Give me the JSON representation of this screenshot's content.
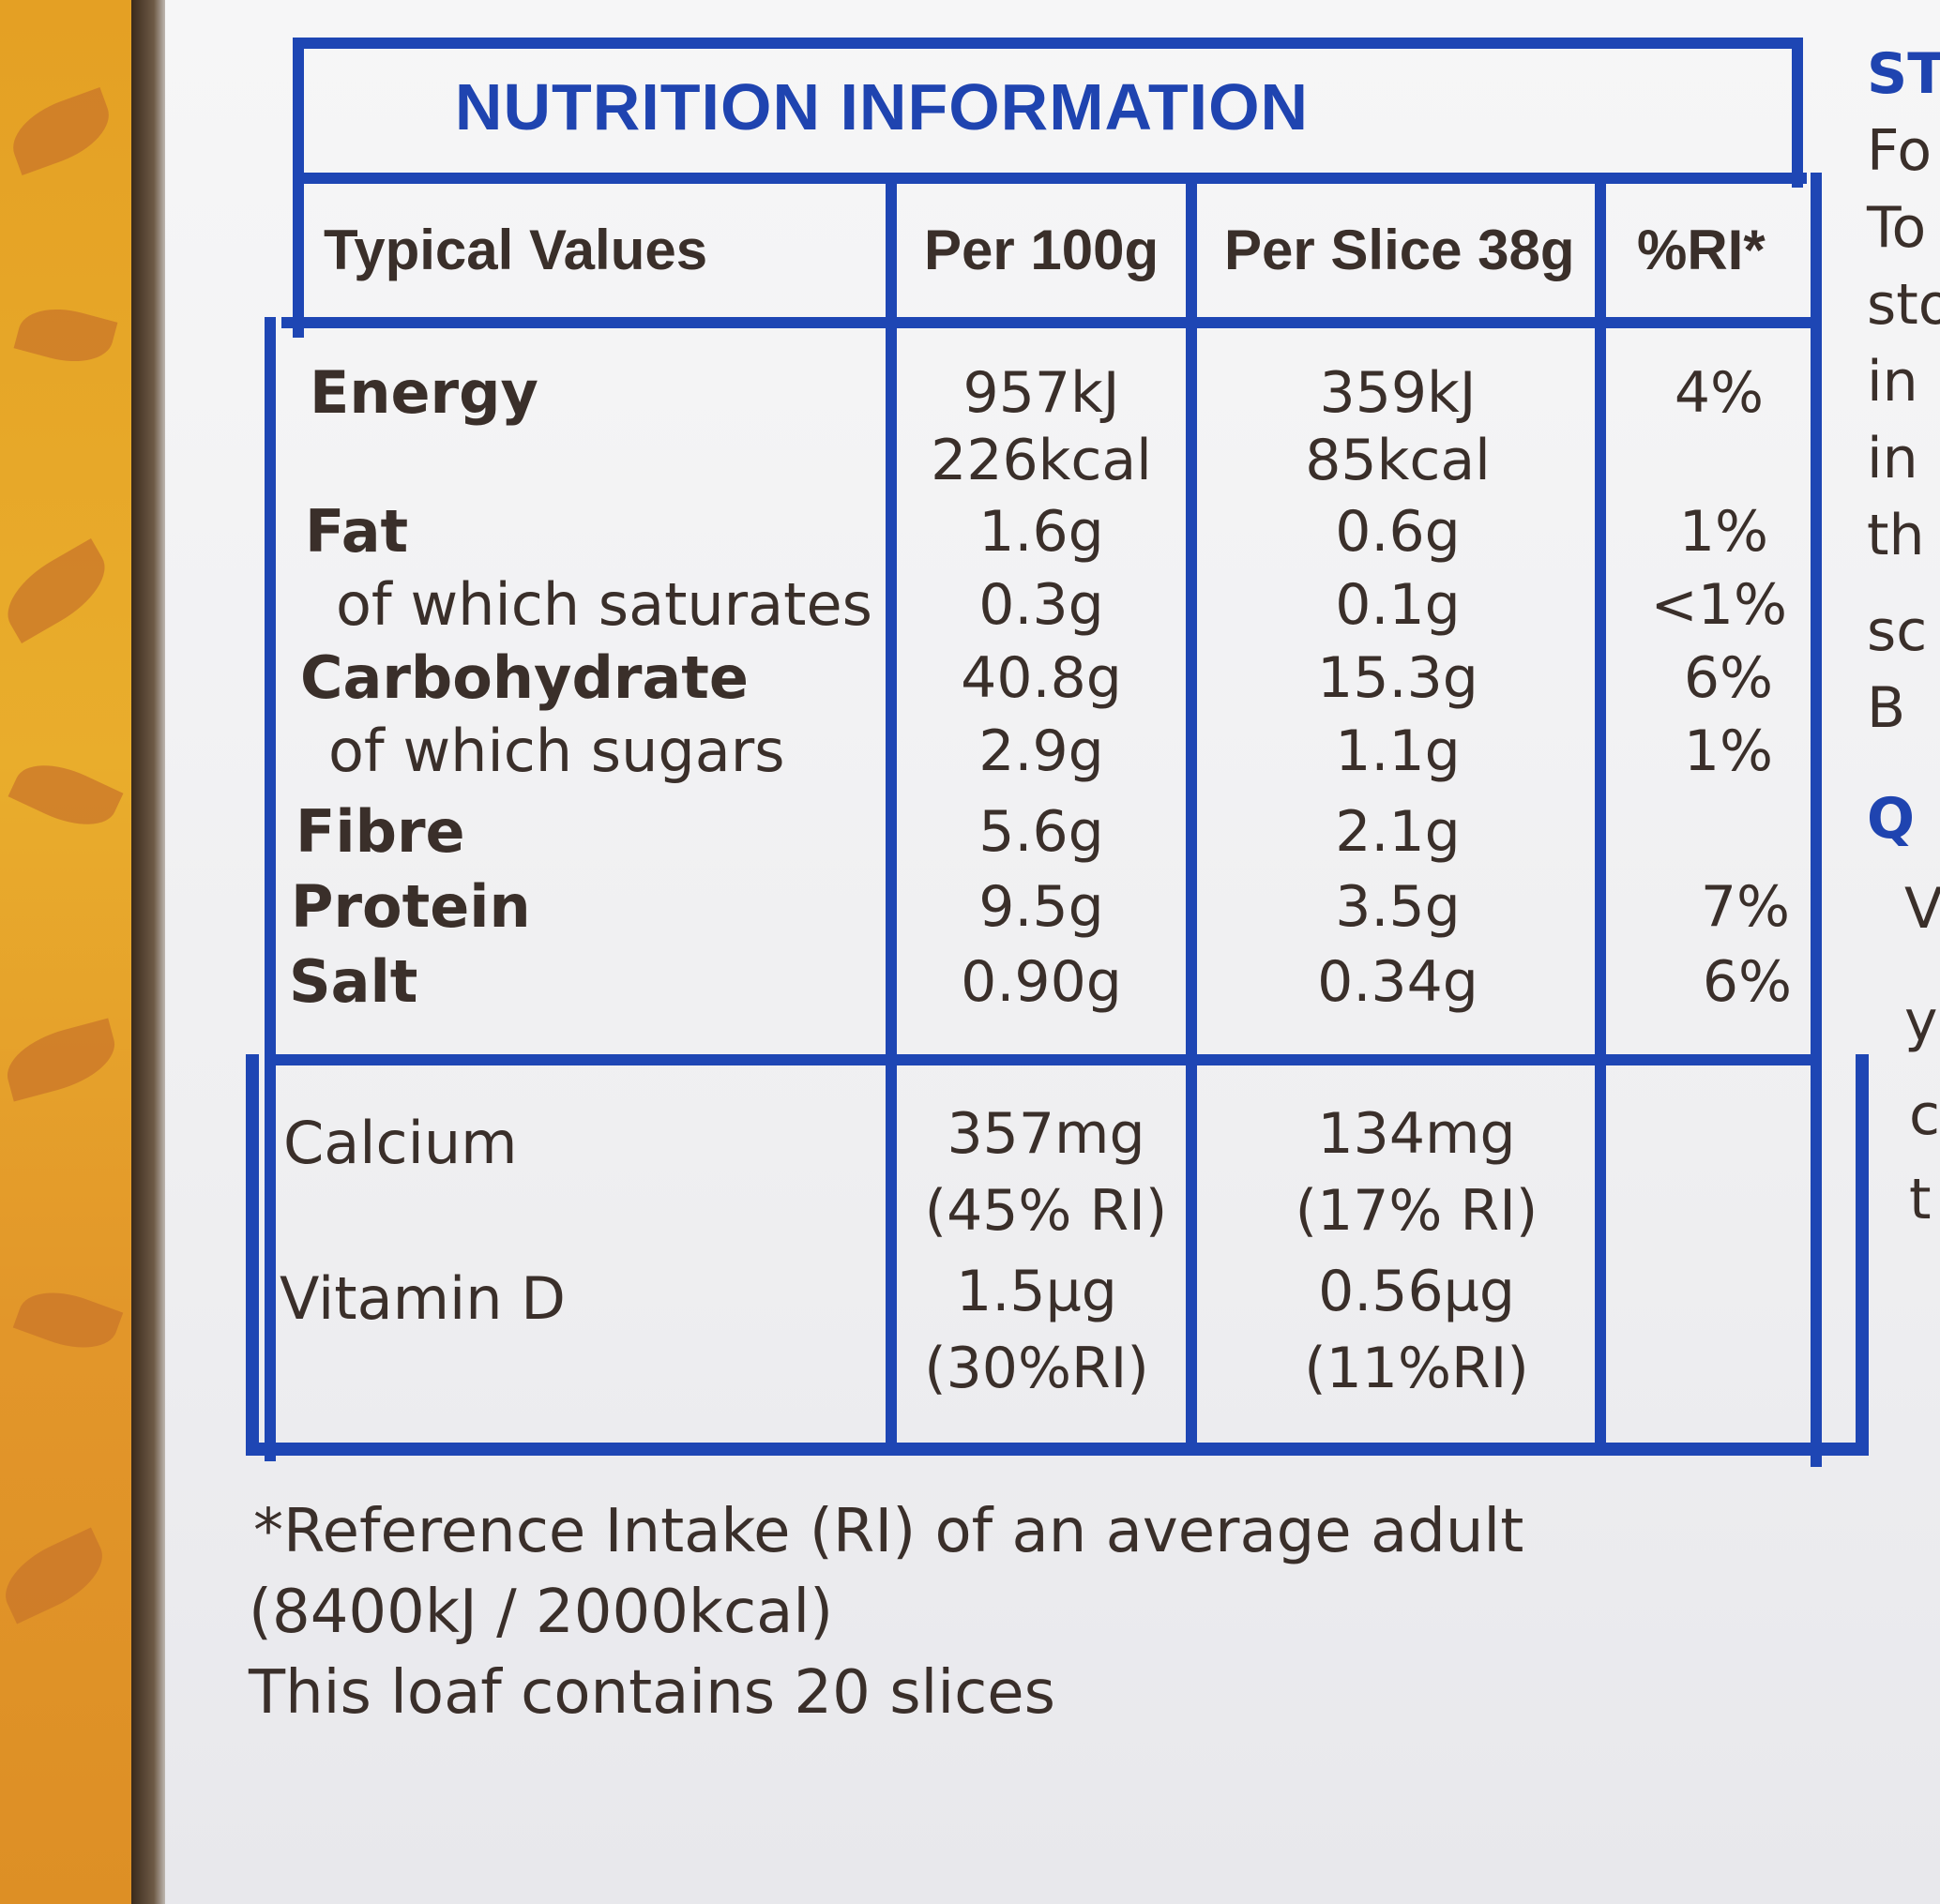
{
  "title": "NUTRITION INFORMATION",
  "headers": [
    "Typical Values",
    "Per 100g",
    "Per Slice 38g",
    "%RI*"
  ],
  "rows": [
    {
      "label": "Energy",
      "per100": "957kJ",
      "perSlice": "359kJ",
      "ri": "4%"
    },
    {
      "label": "",
      "per100": "226kcal",
      "perSlice": "85kcal",
      "ri": ""
    },
    {
      "label": "Fat",
      "per100": "1.6g",
      "perSlice": "0.6g",
      "ri": "1%"
    },
    {
      "label": "of which saturates",
      "per100": "0.3g",
      "perSlice": "0.1g",
      "ri": "<1%"
    },
    {
      "label": "Carbohydrate",
      "per100": "40.8g",
      "perSlice": "15.3g",
      "ri": "6%"
    },
    {
      "label": "of which sugars",
      "per100": "2.9g",
      "perSlice": "1.1g",
      "ri": "1%"
    },
    {
      "label": "Fibre",
      "per100": "5.6g",
      "perSlice": "2.1g",
      "ri": ""
    },
    {
      "label": "Protein",
      "per100": "9.5g",
      "perSlice": "3.5g",
      "ri": "7%"
    },
    {
      "label": "Salt",
      "per100": "0.90g",
      "perSlice": "0.34g",
      "ri": "6%"
    }
  ],
  "minerals": [
    {
      "label": "Calcium",
      "per100": [
        "357mg",
        "(45% RI)"
      ],
      "perSlice": [
        "134mg",
        "(17% RI)"
      ]
    },
    {
      "label": "Vitamin D",
      "per100": [
        "1.5µg",
        "(30%RI)"
      ],
      "perSlice": [
        "0.56µg",
        "(11%RI)"
      ]
    }
  ],
  "footnote": [
    "*Reference Intake (RI) of an average adult",
    "(8400kJ / 2000kcal)",
    "This loaf contains 20 slices"
  ],
  "side_text": {
    "heading": "ST",
    "lines": [
      "Fo",
      "To",
      "sto",
      "in",
      "in",
      "th",
      "sc",
      "B"
    ],
    "heading2": "Q",
    "lines2": [
      "V",
      "y",
      "c",
      "t"
    ]
  },
  "colors": {
    "border": "#1e46b4",
    "title": "#1f44b0",
    "text": "#3a2f2a"
  }
}
